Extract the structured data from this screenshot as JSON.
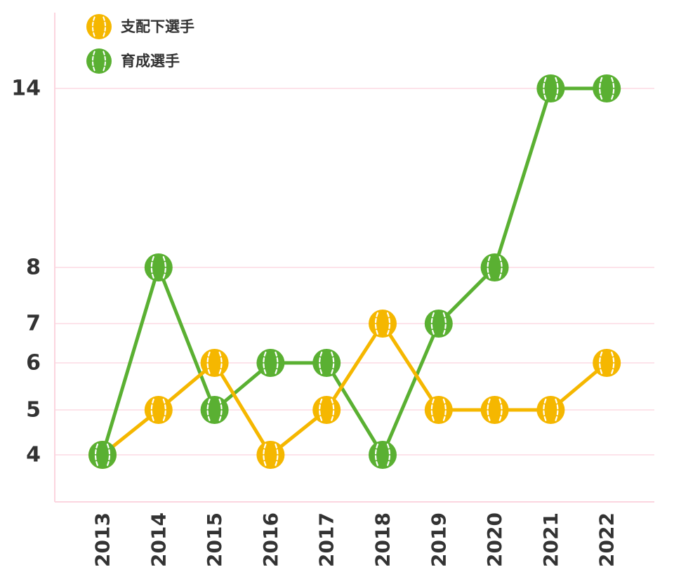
{
  "chart_data": {
    "type": "line",
    "categories": [
      "2013",
      "2014",
      "2015",
      "2016",
      "2017",
      "2018",
      "2019",
      "2020",
      "2021",
      "2022"
    ],
    "series": [
      {
        "name": "支配下選手",
        "color": "#f5b700",
        "values": [
          4,
          5,
          6,
          4,
          5,
          7,
          5,
          5,
          5,
          6
        ]
      },
      {
        "name": "育成選手",
        "color": "#5ab032",
        "values": [
          4,
          8,
          5,
          6,
          6,
          4,
          7,
          8,
          14,
          14
        ]
      }
    ],
    "y_ticks": [
      "4",
      "5",
      "6",
      "7",
      "8",
      "14"
    ],
    "title": "",
    "xlabel": "",
    "ylabel": "",
    "grid": true,
    "grid_color": "#fde3ea",
    "axis_color": "#fbd5df",
    "marker": "baseball-icon",
    "legend_position": "top-left"
  }
}
